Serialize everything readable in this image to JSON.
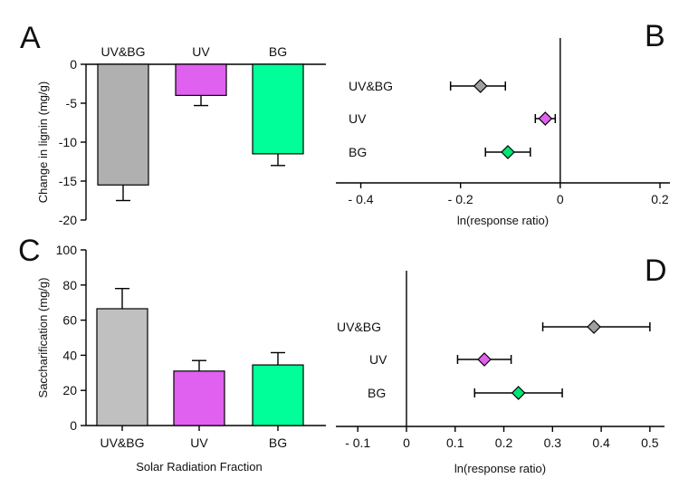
{
  "colors": {
    "uvbg_a": "#b0b0b0",
    "uvbg_c": "#c0c0c0",
    "uv": "#e060f0",
    "bg": "#00ff99",
    "marker_uvbg": "#a0a0a0",
    "marker_uv": "#e060f0",
    "marker_bg": "#00e676"
  },
  "chart_data": [
    {
      "panel": "A",
      "type": "bar",
      "categories": [
        "UV&BG",
        "UV",
        "BG"
      ],
      "values": [
        -15.5,
        -4.0,
        -11.5
      ],
      "errors": [
        2.0,
        1.3,
        1.5
      ],
      "ylabel": "Change in lignin (mg/g)",
      "ylim": [
        -20,
        0
      ],
      "yticks": [
        0,
        -5,
        -10,
        -15,
        -20
      ],
      "ytick_labels": [
        "0",
        "-5",
        "-10",
        "-15",
        "-20"
      ],
      "category_labels_position": "top"
    },
    {
      "panel": "B",
      "type": "scatter",
      "categories": [
        "UV&BG",
        "UV",
        "BG"
      ],
      "values": [
        -0.16,
        -0.03,
        -0.105
      ],
      "ci_low": [
        -0.22,
        -0.05,
        -0.15
      ],
      "ci_high": [
        -0.11,
        -0.01,
        -0.06
      ],
      "xlabel": "ln(response ratio)",
      "xlim": [
        -0.45,
        0.22
      ],
      "xticks": [
        -0.4,
        -0.2,
        0,
        0.2
      ],
      "xtick_labels": [
        "- 0.4",
        "- 0.2",
        "0",
        "0.2"
      ]
    },
    {
      "panel": "C",
      "type": "bar",
      "categories": [
        "UV&BG",
        "UV",
        "BG"
      ],
      "values": [
        66.5,
        31.0,
        34.5
      ],
      "errors": [
        11.5,
        6.0,
        7.0
      ],
      "xlabel": "Solar Radiation Fraction",
      "ylabel": "Saccharification (mg/g)",
      "ylim": [
        0,
        100
      ],
      "yticks": [
        0,
        20,
        40,
        60,
        80,
        100
      ],
      "ytick_labels": [
        "0",
        "20",
        "40",
        "60",
        "80",
        "100"
      ]
    },
    {
      "panel": "D",
      "type": "scatter",
      "categories": [
        "UV&BG",
        "UV",
        "BG"
      ],
      "values": [
        0.385,
        0.16,
        0.23
      ],
      "ci_low": [
        0.28,
        0.105,
        0.14
      ],
      "ci_high": [
        0.5,
        0.215,
        0.32
      ],
      "xlabel": "ln(response ratio)",
      "xlim": [
        -0.145,
        0.53
      ],
      "xticks": [
        -0.1,
        0,
        0.1,
        0.2,
        0.3,
        0.4,
        0.5
      ],
      "xtick_labels": [
        "- 0.1",
        "0",
        "0.1",
        "0.2",
        "0.3",
        "0.4",
        "0.5"
      ]
    }
  ]
}
